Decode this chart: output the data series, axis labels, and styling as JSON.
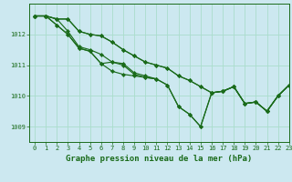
{
  "title": "Graphe pression niveau de la mer (hPa)",
  "bg_color": "#cce8f0",
  "line_color": "#1a6b1a",
  "grid_color": "#aaddcc",
  "xlim": [
    -0.5,
    23
  ],
  "ylim": [
    1008.5,
    1013.0
  ],
  "yticks": [
    1009,
    1010,
    1011,
    1012
  ],
  "xticks": [
    0,
    1,
    2,
    3,
    4,
    5,
    6,
    7,
    8,
    9,
    10,
    11,
    12,
    13,
    14,
    15,
    16,
    17,
    18,
    19,
    20,
    21,
    22,
    23
  ],
  "series": [
    [
      1012.6,
      1012.6,
      1012.3,
      1012.0,
      1011.55,
      1011.45,
      1011.05,
      1010.8,
      1010.7,
      1010.65,
      1010.6,
      1010.55,
      1010.35,
      1009.65,
      1009.4,
      1009.0,
      1010.1,
      1010.15,
      1010.3,
      1009.75,
      1009.8,
      1009.5,
      1010.0,
      1010.35
    ],
    [
      1012.6,
      1012.6,
      1012.3,
      1012.0,
      1011.55,
      1011.45,
      1011.05,
      1011.1,
      1011.0,
      1010.7,
      1010.6,
      1010.55,
      1010.35,
      1009.65,
      1009.4,
      1009.0,
      1010.1,
      1010.15,
      1010.3,
      1009.75,
      1009.8,
      1009.5,
      1010.0,
      1010.35
    ],
    [
      1012.6,
      1012.6,
      1012.5,
      1012.1,
      1011.6,
      1011.5,
      1011.35,
      1011.1,
      1011.05,
      1010.75,
      1010.65,
      1010.55,
      null,
      null,
      null,
      null,
      null,
      null,
      null,
      null,
      null,
      null,
      null,
      null
    ],
    [
      1012.6,
      1012.6,
      1012.5,
      1012.5,
      1012.1,
      1012.0,
      1011.95,
      1011.75,
      1011.5,
      1011.3,
      1011.1,
      1011.0,
      1010.9,
      1010.65,
      1010.5,
      1010.3,
      1010.1,
      1010.15,
      1010.3,
      1009.75,
      1009.8,
      1009.5,
      1010.0,
      1010.35
    ],
    [
      1012.6,
      1012.6,
      1012.5,
      1012.5,
      1012.1,
      1012.0,
      1011.95,
      1011.75,
      1011.5,
      1011.3,
      1011.1,
      1011.0,
      1010.9,
      1010.65,
      1010.5,
      1010.3,
      1010.1,
      1010.15,
      1010.3,
      1009.75,
      1009.8,
      1009.5,
      1010.0,
      1010.35
    ]
  ],
  "marker_size": 2.2,
  "linewidth": 0.85,
  "title_fontsize": 6.5,
  "tick_fontsize": 5.0
}
